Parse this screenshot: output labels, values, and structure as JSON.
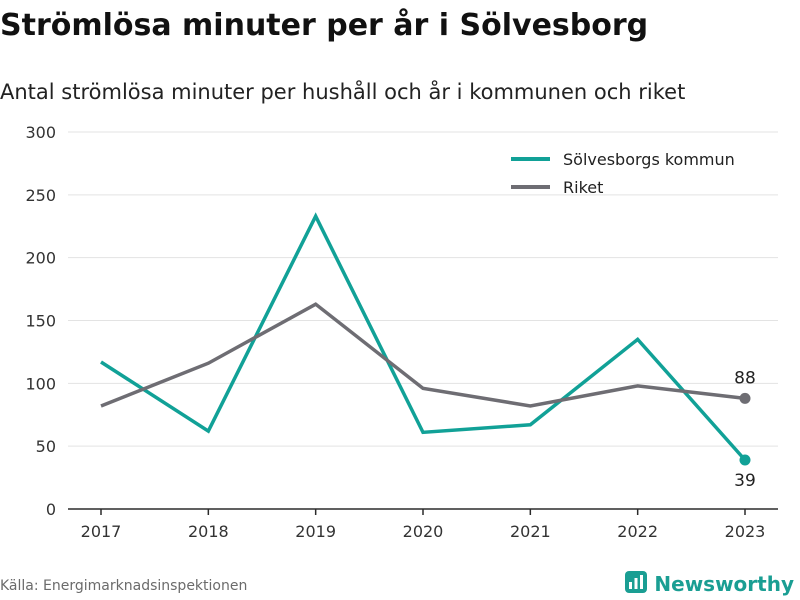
{
  "title": "Strömlösa minuter per år i Sölvesborg",
  "subtitle": "Antal strömlösa minuter per hushåll och år i kommunen och riket",
  "source": "Källa: Energimarknadsinspektionen",
  "brand": {
    "name": "Newsworthy",
    "icon": "newsworthy-logo-icon",
    "color": "#1a9e93"
  },
  "chart_data": {
    "type": "line",
    "x": [
      "2017",
      "2018",
      "2019",
      "2020",
      "2021",
      "2022",
      "2023"
    ],
    "ylim": [
      0,
      300
    ],
    "yticks": [
      0,
      50,
      100,
      150,
      200,
      250,
      300
    ],
    "grid": true,
    "legend": "top-right",
    "series": [
      {
        "name": "Sölvesborgs kommun",
        "color": "#11a197",
        "values": [
          117,
          62,
          233,
          61,
          67,
          135,
          39
        ],
        "end_label": "39"
      },
      {
        "name": "Riket",
        "color": "#6e6d73",
        "values": [
          82,
          116,
          163,
          96,
          82,
          98,
          88
        ],
        "end_label": "88"
      }
    ]
  }
}
